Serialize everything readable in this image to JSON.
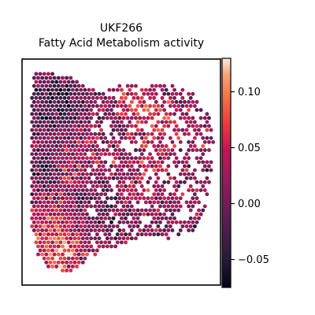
{
  "chart_data": {
    "type": "scatter",
    "title": "UKF266",
    "subtitle": "Fatty Acid Metabolism activity",
    "xlabel": "",
    "ylabel": "",
    "grid": false,
    "legend": "none",
    "colormap": "rocket",
    "colorbar": {
      "vmin": -0.075,
      "vmax": 0.13,
      "ticks": [
        0.1,
        0.05,
        0.0,
        -0.05
      ],
      "tick_labels": [
        "0.10",
        "0.05",
        "0.00",
        "−0.05"
      ]
    },
    "tissue_outline": [
      [
        0.06,
        0.06
      ],
      [
        0.14,
        0.06
      ],
      [
        0.24,
        0.08
      ],
      [
        0.32,
        0.12
      ],
      [
        0.4,
        0.15
      ],
      [
        0.5,
        0.11
      ],
      [
        0.62,
        0.1
      ],
      [
        0.75,
        0.11
      ],
      [
        0.86,
        0.15
      ],
      [
        0.93,
        0.22
      ],
      [
        0.96,
        0.3
      ],
      [
        0.97,
        0.42
      ],
      [
        0.95,
        0.54
      ],
      [
        0.92,
        0.66
      ],
      [
        0.86,
        0.76
      ],
      [
        0.76,
        0.8
      ],
      [
        0.64,
        0.78
      ],
      [
        0.52,
        0.82
      ],
      [
        0.42,
        0.84
      ],
      [
        0.34,
        0.88
      ],
      [
        0.24,
        0.94
      ],
      [
        0.14,
        0.93
      ],
      [
        0.08,
        0.87
      ],
      [
        0.05,
        0.75
      ],
      [
        0.05,
        0.62
      ],
      [
        0.05,
        0.45
      ],
      [
        0.05,
        0.3
      ],
      [
        0.05,
        0.15
      ]
    ],
    "spot_model": {
      "spacing": 0.0205,
      "seed": 266,
      "base_activity": 0.008,
      "hotspots": [
        {
          "x": 0.13,
          "y": 0.78,
          "r": 0.1,
          "value": 0.055
        },
        {
          "x": 0.22,
          "y": 0.86,
          "r": 0.07,
          "value": 0.045
        },
        {
          "x": 0.55,
          "y": 0.18,
          "r": 0.1,
          "value": 0.04
        },
        {
          "x": 0.72,
          "y": 0.3,
          "r": 0.12,
          "value": 0.035
        },
        {
          "x": 0.3,
          "y": 0.45,
          "r": 0.1,
          "value": 0.03
        },
        {
          "x": 0.6,
          "y": 0.55,
          "r": 0.12,
          "value": 0.025
        },
        {
          "x": 0.18,
          "y": 0.2,
          "r": 0.1,
          "value": -0.045
        },
        {
          "x": 0.4,
          "y": 0.62,
          "r": 0.08,
          "value": -0.035
        },
        {
          "x": 0.1,
          "y": 0.5,
          "r": 0.06,
          "value": -0.03
        },
        {
          "x": 0.48,
          "y": 0.3,
          "r": 0.06,
          "value": -0.025
        }
      ],
      "noise": 0.045,
      "sparse_region": {
        "x_start": 0.33,
        "drop_fraction": 0.28
      }
    }
  }
}
